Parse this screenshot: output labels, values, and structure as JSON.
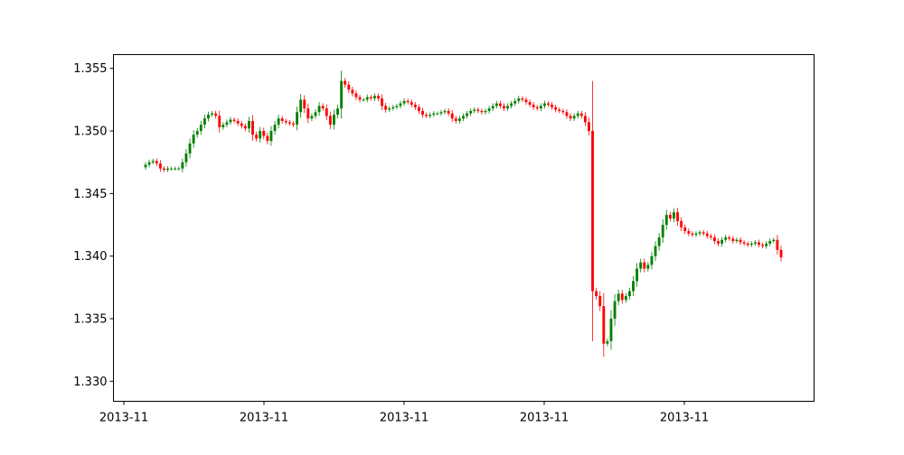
{
  "chart_data": {
    "type": "candlestick",
    "title": "",
    "xlabel": "",
    "ylabel": "",
    "ylim": [
      1.3284,
      1.3561
    ],
    "yticks": [
      1.33,
      1.335,
      1.34,
      1.345,
      1.35,
      1.355
    ],
    "ytick_labels": [
      "1.330",
      "1.335",
      "1.340",
      "1.345",
      "1.350",
      "1.355"
    ],
    "xtick_labels": [
      "2013-11",
      "2013-11",
      "2013-11",
      "2013-11",
      "2013-11"
    ],
    "grid": false,
    "colors": {
      "up": "#008000",
      "down": "#ff0000"
    },
    "candles_close": [
      1.3473,
      1.3475,
      1.3476,
      1.3474,
      1.347,
      1.3469,
      1.347,
      1.347,
      1.347,
      1.347,
      1.3475,
      1.3482,
      1.349,
      1.3497,
      1.35,
      1.3505,
      1.351,
      1.3513,
      1.3514,
      1.3512,
      1.3503,
      1.3505,
      1.3507,
      1.3509,
      1.3508,
      1.3506,
      1.3504,
      1.3502,
      1.3508,
      1.3497,
      1.3494,
      1.35,
      1.3496,
      1.3492,
      1.35,
      1.3505,
      1.351,
      1.3508,
      1.3507,
      1.3506,
      1.3505,
      1.3515,
      1.3525,
      1.3518,
      1.351,
      1.3512,
      1.3515,
      1.352,
      1.3518,
      1.3512,
      1.3505,
      1.3513,
      1.3518,
      1.354,
      1.3537,
      1.3533,
      1.353,
      1.3527,
      1.3525,
      1.3525,
      1.3527,
      1.3526,
      1.3528,
      1.3526,
      1.352,
      1.3517,
      1.3518,
      1.3519,
      1.352,
      1.3522,
      1.3524,
      1.3523,
      1.3521,
      1.3519,
      1.3516,
      1.3513,
      1.3512,
      1.3513,
      1.3514,
      1.3514,
      1.3515,
      1.3516,
      1.3514,
      1.351,
      1.3508,
      1.351,
      1.3512,
      1.3514,
      1.3516,
      1.3517,
      1.3516,
      1.3515,
      1.3516,
      1.3518,
      1.352,
      1.3522,
      1.352,
      1.3518,
      1.352,
      1.3522,
      1.3524,
      1.3526,
      1.3525,
      1.3523,
      1.3521,
      1.3519,
      1.3518,
      1.352,
      1.3522,
      1.3521,
      1.3519,
      1.3517,
      1.3516,
      1.3515,
      1.3512,
      1.351,
      1.3512,
      1.3514,
      1.3512,
      1.3507,
      1.35,
      1.3372,
      1.3368,
      1.336,
      1.333,
      1.3332,
      1.335,
      1.3364,
      1.337,
      1.3365,
      1.3368,
      1.3372,
      1.338,
      1.339,
      1.3395,
      1.339,
      1.3393,
      1.34,
      1.3408,
      1.3415,
      1.3425,
      1.3433,
      1.343,
      1.3435,
      1.3428,
      1.3423,
      1.342,
      1.3418,
      1.3417,
      1.3418,
      1.3419,
      1.3418,
      1.3416,
      1.3415,
      1.3412,
      1.341,
      1.3413,
      1.3415,
      1.3414,
      1.3412,
      1.3413,
      1.3411,
      1.341,
      1.3409,
      1.341,
      1.3411,
      1.3409,
      1.3408,
      1.341,
      1.3412,
      1.3413,
      1.3405,
      1.3399
    ],
    "open_first": 1.3471
  }
}
